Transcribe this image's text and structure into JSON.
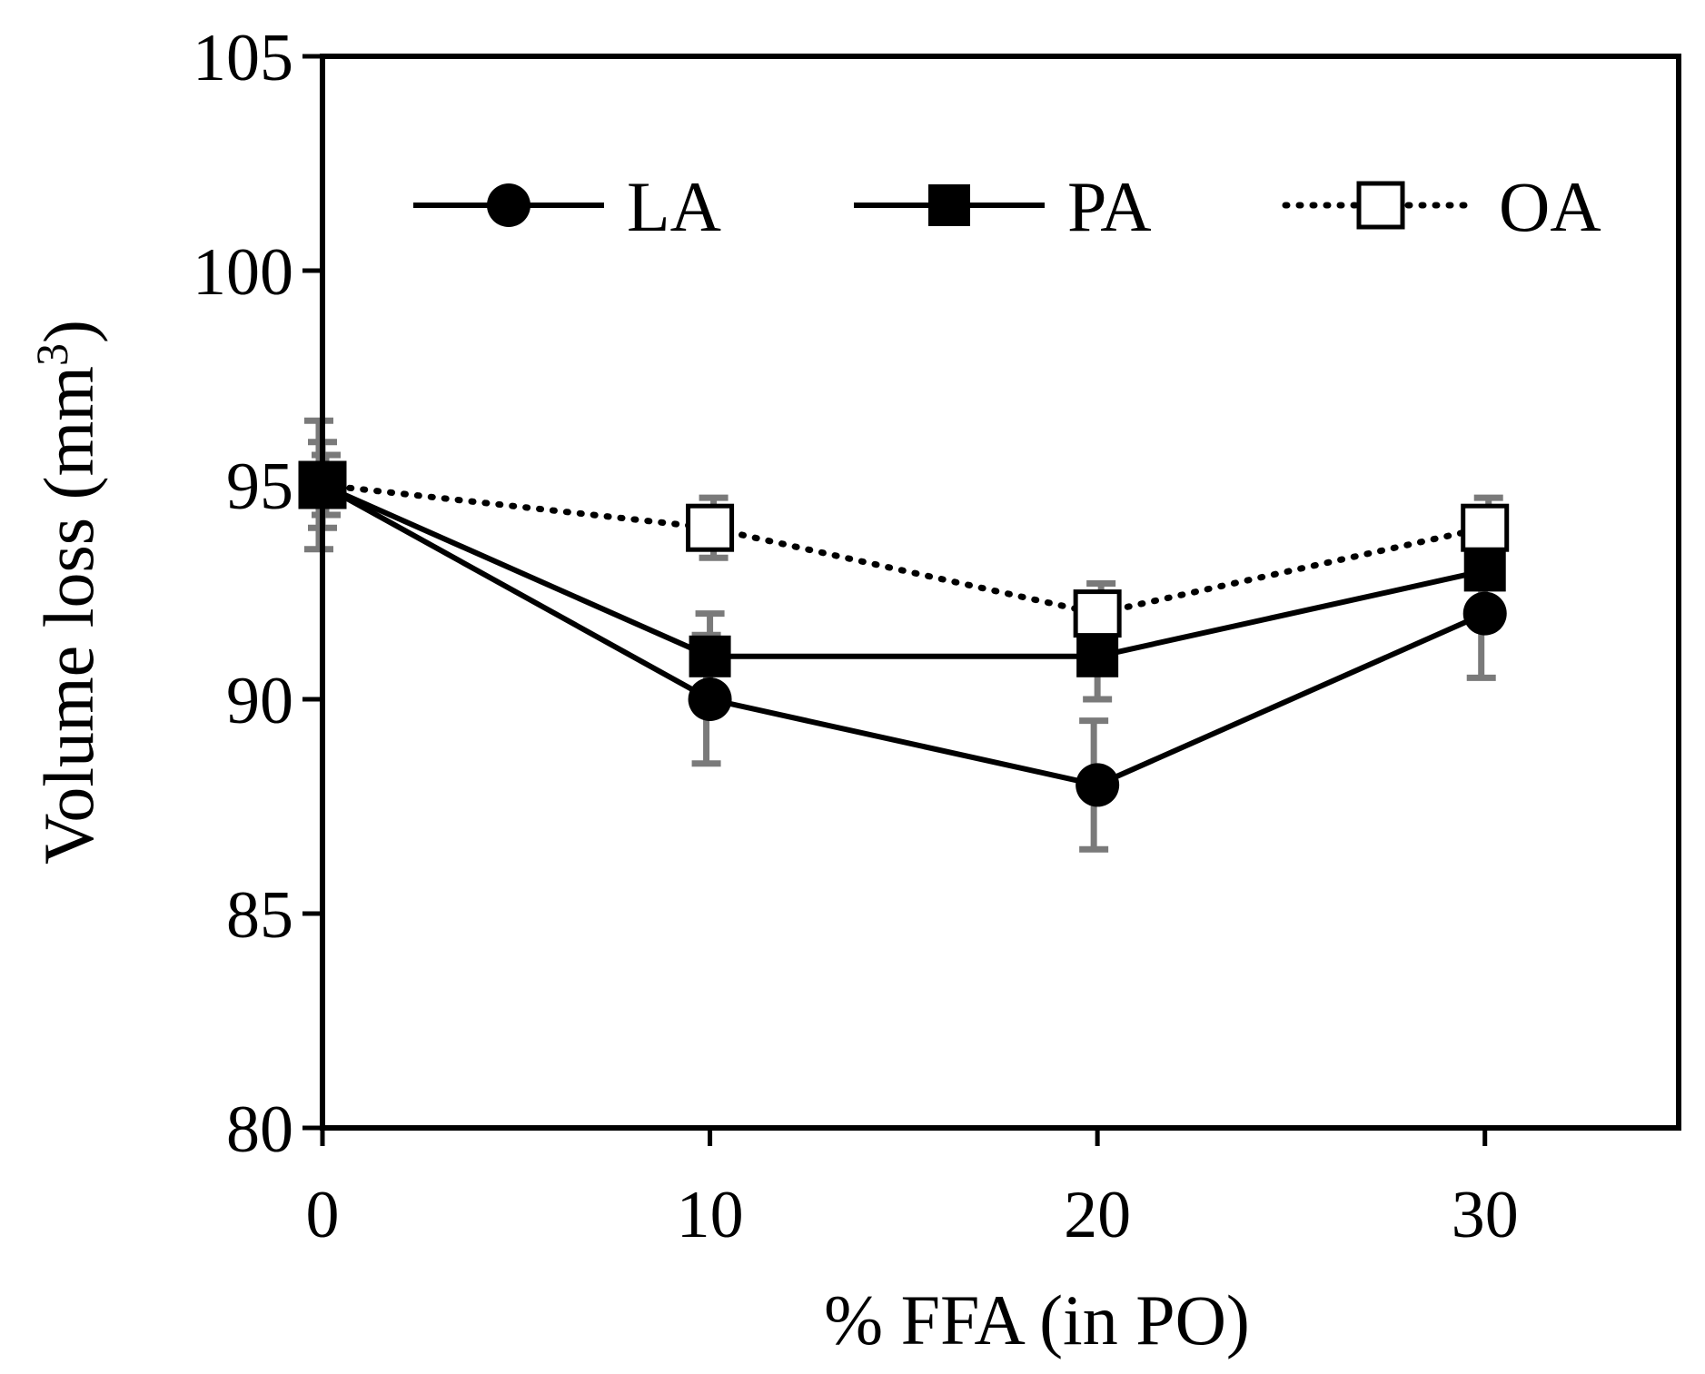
{
  "chart_data": {
    "type": "line",
    "title": "",
    "xlabel": "% FFA (in PO)",
    "ylabel_main": "Volume loss (mm",
    "ylabel_sup": "3",
    "ylabel_close": ")",
    "xlim": [
      0,
      35
    ],
    "ylim": [
      80,
      105
    ],
    "x_ticks": [
      0,
      10,
      20,
      30
    ],
    "x_tick_labels": [
      "0",
      "10",
      "20",
      "30"
    ],
    "y_ticks": [
      80,
      85,
      90,
      95,
      100,
      105
    ],
    "y_tick_labels": [
      "80",
      "85",
      "90",
      "95",
      "100",
      "105"
    ],
    "grid": false,
    "legend_position": "top",
    "error_bar_color": "#7a7a7a",
    "series": [
      {
        "name": "LA",
        "marker": "circle-filled",
        "line_style": "solid",
        "color": "#000000",
        "x": [
          0,
          10,
          20,
          30
        ],
        "y": [
          95,
          90,
          88,
          92
        ],
        "error": [
          1.5,
          1.5,
          1.5,
          1.5
        ]
      },
      {
        "name": "PA",
        "marker": "square-filled",
        "line_style": "solid",
        "color": "#000000",
        "x": [
          0,
          10,
          20,
          30
        ],
        "y": [
          95,
          91,
          91,
          93
        ],
        "error": [
          1.0,
          1.0,
          1.0,
          1.0
        ]
      },
      {
        "name": "OA",
        "marker": "square-open",
        "line_style": "dotted",
        "color": "#000000",
        "x": [
          0,
          10,
          20,
          30
        ],
        "y": [
          95,
          94,
          92,
          94
        ],
        "error": [
          0.7,
          0.7,
          0.7,
          0.7
        ]
      }
    ]
  }
}
